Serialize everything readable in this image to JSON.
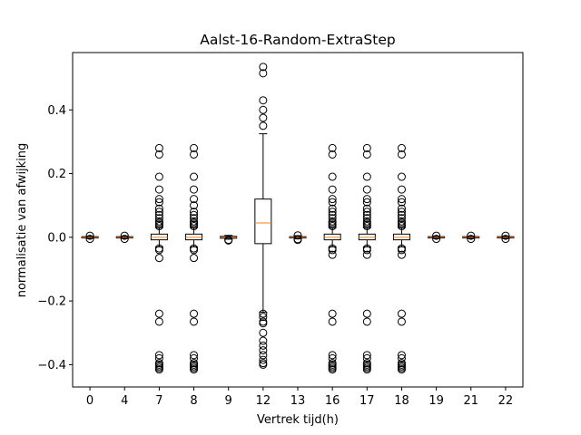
{
  "chart_data": {
    "type": "box",
    "title": "Aalst-16-Random-ExtraStep",
    "xlabel": "Vertrek tijd(h)",
    "ylabel": "normalisatie van afwijking",
    "categories": [
      "0",
      "4",
      "7",
      "8",
      "9",
      "12",
      "13",
      "16",
      "17",
      "18",
      "19",
      "21",
      "22"
    ],
    "yticks": [
      -0.4,
      -0.2,
      0.0,
      0.2,
      0.4
    ],
    "ytick_labels": [
      "−0.4",
      "−0.2",
      "0.0",
      "0.2",
      "0.4"
    ],
    "ylim": [
      -0.47,
      0.58
    ],
    "grid": false,
    "colors": {
      "median": "#ff7f0e",
      "box": "#000000",
      "flier": "#000000"
    },
    "boxes": [
      {
        "cat": "0",
        "q1": -0.002,
        "median": 0.0,
        "q3": 0.002,
        "whislo": -0.004,
        "whishi": 0.004,
        "fliers": [
          -0.005,
          0.005
        ]
      },
      {
        "cat": "4",
        "q1": -0.002,
        "median": 0.0,
        "q3": 0.002,
        "whislo": -0.004,
        "whishi": 0.004,
        "fliers": [
          -0.005,
          0.005
        ]
      },
      {
        "cat": "7",
        "q1": -0.008,
        "median": 0.0,
        "q3": 0.01,
        "whislo": -0.03,
        "whishi": 0.03,
        "fliers": [
          0.28,
          0.26,
          0.19,
          0.15,
          0.12,
          0.11,
          0.09,
          0.08,
          0.07,
          0.06,
          0.05,
          0.045,
          0.04,
          0.035,
          -0.035,
          -0.04,
          -0.065,
          -0.24,
          -0.265,
          -0.37,
          -0.38,
          -0.395,
          -0.4,
          -0.405,
          -0.41,
          -0.415
        ]
      },
      {
        "cat": "8",
        "q1": -0.008,
        "median": 0.0,
        "q3": 0.01,
        "whislo": -0.03,
        "whishi": 0.03,
        "fliers": [
          0.28,
          0.26,
          0.19,
          0.15,
          0.12,
          0.1,
          0.08,
          0.07,
          0.06,
          0.05,
          0.045,
          0.04,
          0.035,
          -0.035,
          -0.04,
          -0.065,
          -0.24,
          -0.265,
          -0.37,
          -0.38,
          -0.395,
          -0.4,
          -0.405,
          -0.41,
          -0.415
        ]
      },
      {
        "cat": "9",
        "q1": -0.003,
        "median": 0.0,
        "q3": 0.003,
        "whislo": -0.006,
        "whishi": 0.006,
        "fliers": [
          -0.008,
          -0.01
        ]
      },
      {
        "cat": "12",
        "q1": -0.02,
        "median": 0.045,
        "q3": 0.12,
        "whislo": -0.235,
        "whishi": 0.325,
        "fliers": [
          0.535,
          0.515,
          0.43,
          0.4,
          0.375,
          0.35,
          -0.24,
          -0.25,
          -0.265,
          -0.27,
          -0.3,
          -0.325,
          -0.34,
          -0.355,
          -0.37,
          -0.385,
          -0.395,
          -0.4
        ]
      },
      {
        "cat": "13",
        "q1": -0.002,
        "median": 0.0,
        "q3": 0.002,
        "whislo": -0.005,
        "whishi": 0.005,
        "fliers": [
          -0.006,
          -0.008,
          0.006
        ]
      },
      {
        "cat": "16",
        "q1": -0.008,
        "median": 0.0,
        "q3": 0.01,
        "whislo": -0.03,
        "whishi": 0.03,
        "fliers": [
          0.28,
          0.26,
          0.19,
          0.15,
          0.12,
          0.11,
          0.09,
          0.08,
          0.07,
          0.06,
          0.05,
          0.045,
          0.04,
          0.035,
          -0.035,
          -0.04,
          -0.055,
          -0.24,
          -0.265,
          -0.37,
          -0.38,
          -0.395,
          -0.4,
          -0.405,
          -0.41,
          -0.415
        ]
      },
      {
        "cat": "17",
        "q1": -0.008,
        "median": 0.0,
        "q3": 0.01,
        "whislo": -0.03,
        "whishi": 0.03,
        "fliers": [
          0.28,
          0.26,
          0.19,
          0.15,
          0.12,
          0.11,
          0.09,
          0.08,
          0.07,
          0.06,
          0.05,
          0.045,
          0.04,
          0.035,
          -0.035,
          -0.04,
          -0.055,
          -0.24,
          -0.265,
          -0.37,
          -0.38,
          -0.395,
          -0.4,
          -0.405,
          -0.41,
          -0.415
        ]
      },
      {
        "cat": "18",
        "q1": -0.008,
        "median": 0.0,
        "q3": 0.01,
        "whislo": -0.03,
        "whishi": 0.03,
        "fliers": [
          0.28,
          0.26,
          0.19,
          0.15,
          0.12,
          0.11,
          0.09,
          0.08,
          0.07,
          0.06,
          0.05,
          0.045,
          0.04,
          0.035,
          -0.035,
          -0.04,
          -0.055,
          -0.24,
          -0.265,
          -0.37,
          -0.38,
          -0.395,
          -0.4,
          -0.405,
          -0.41,
          -0.415
        ]
      },
      {
        "cat": "19",
        "q1": -0.002,
        "median": 0.0,
        "q3": 0.002,
        "whislo": -0.004,
        "whishi": 0.004,
        "fliers": [
          -0.005,
          0.005
        ]
      },
      {
        "cat": "21",
        "q1": -0.002,
        "median": 0.0,
        "q3": 0.002,
        "whislo": -0.004,
        "whishi": 0.004,
        "fliers": [
          -0.005,
          0.005
        ]
      },
      {
        "cat": "22",
        "q1": -0.002,
        "median": 0.0,
        "q3": 0.002,
        "whislo": -0.004,
        "whishi": 0.004,
        "fliers": [
          -0.005,
          0.005
        ]
      }
    ]
  }
}
